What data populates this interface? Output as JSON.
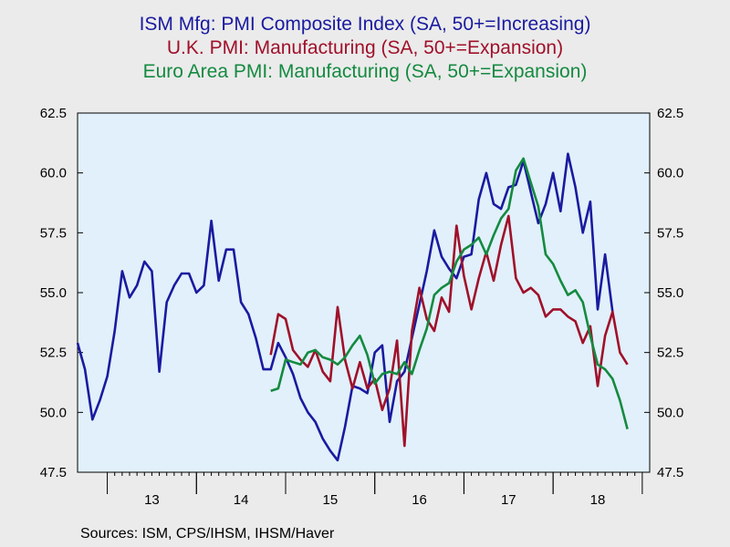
{
  "chart_data": {
    "type": "line",
    "titles": [
      {
        "text": "ISM Mfg: PMI Composite Index (SA, 50+=Increasing)",
        "color": "#1a1aa0"
      },
      {
        "text": "U.K. PMI: Manufacturing (SA, 50+=Expansion)",
        "color": "#a0102a"
      },
      {
        "text": "Euro Area PMI: Manufacturing (SA, 50+=Expansion)",
        "color": "#148a40"
      }
    ],
    "xlabel": "",
    "ylabel": "",
    "ylim": [
      47.5,
      62.5
    ],
    "y_ticks": [
      "47.5",
      "50.0",
      "52.5",
      "55.0",
      "57.5",
      "60.0",
      "62.5"
    ],
    "x_range": [
      "2012-09",
      "2019-02"
    ],
    "x_ticks": [
      "13",
      "14",
      "15",
      "16",
      "17",
      "18"
    ],
    "grid": false,
    "plot_background": "#e1f0fa",
    "series": [
      {
        "color": "#1a1aa0",
        "start": "2012-09",
        "values": [
          52.9,
          51.8,
          49.7,
          50.5,
          51.5,
          53.4,
          55.9,
          54.8,
          55.3,
          56.3,
          55.9,
          51.7,
          54.6,
          55.3,
          55.8,
          55.8,
          55.0,
          55.3,
          58.0,
          55.5,
          56.8,
          56.8,
          54.6,
          54.1,
          53.1,
          51.8,
          51.8,
          52.9,
          52.3,
          51.6,
          50.6,
          50.0,
          49.6,
          48.9,
          48.4,
          48.0,
          49.4,
          51.1,
          51.0,
          50.8,
          52.5,
          52.8,
          49.6,
          51.3,
          51.7,
          53.1,
          54.5,
          55.9,
          57.6,
          56.5,
          56.0,
          55.6,
          56.5,
          56.6,
          58.9,
          60.0,
          58.7,
          58.5,
          59.4,
          59.5,
          60.5,
          59.2,
          57.9,
          58.7,
          60.0,
          58.4,
          60.8,
          59.4,
          57.5,
          58.8,
          54.3,
          56.6,
          54.2
        ]
      },
      {
        "color": "#a0102a",
        "start": "2014-11",
        "values": [
          52.4,
          54.1,
          53.9,
          52.6,
          52.2,
          51.9,
          52.6,
          51.7,
          51.3,
          54.4,
          52.2,
          51.0,
          52.1,
          51.0,
          51.4,
          50.1,
          51.0,
          53.0,
          48.6,
          53.4,
          55.2,
          53.9,
          53.4,
          54.8,
          54.2,
          57.8,
          55.7,
          54.3,
          55.6,
          56.7,
          55.5,
          57.0,
          58.2,
          55.6,
          55.0,
          55.2,
          54.9,
          54.0,
          54.3,
          54.3,
          54.0,
          53.8,
          52.9,
          53.6,
          51.1,
          53.2,
          54.2,
          52.5,
          52.0
        ]
      },
      {
        "color": "#148a40",
        "start": "2014-11",
        "values": [
          50.9,
          51.0,
          52.2,
          52.1,
          52.0,
          52.5,
          52.6,
          52.3,
          52.2,
          52.0,
          52.3,
          52.8,
          53.2,
          52.4,
          51.2,
          51.6,
          51.7,
          51.6,
          52.1,
          51.6,
          52.6,
          53.5,
          54.9,
          55.2,
          55.4,
          56.3,
          56.8,
          57.0,
          57.3,
          56.6,
          57.4,
          58.1,
          58.5,
          60.1,
          60.6,
          59.6,
          58.6,
          56.6,
          56.2,
          55.5,
          54.9,
          55.1,
          54.6,
          53.2,
          52.0,
          51.8,
          51.4,
          50.5,
          49.3
        ]
      }
    ],
    "source": "Sources:  ISM, CPS/IHSM, IHSM/Haver"
  }
}
